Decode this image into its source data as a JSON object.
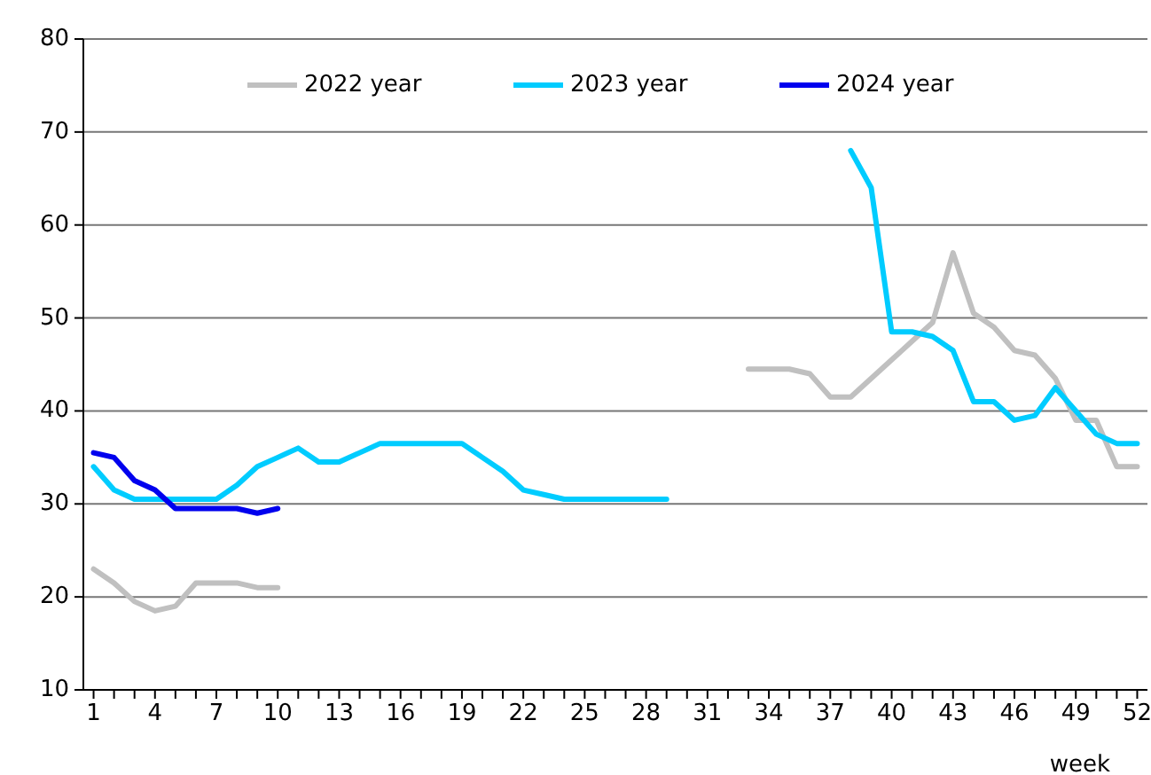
{
  "chart_data": {
    "type": "line",
    "xlabel": "week",
    "x": [
      1,
      2,
      3,
      4,
      5,
      6,
      7,
      8,
      9,
      10,
      11,
      12,
      13,
      14,
      15,
      16,
      17,
      18,
      19,
      20,
      21,
      22,
      23,
      24,
      25,
      26,
      27,
      28,
      29,
      30,
      31,
      32,
      33,
      34,
      35,
      36,
      37,
      38,
      39,
      40,
      41,
      42,
      43,
      44,
      45,
      46,
      47,
      48,
      49,
      50,
      51,
      52
    ],
    "xlim": [
      0.5,
      52.5
    ],
    "xticks": [
      1,
      {
        "value": 2,
        "label": null
      },
      {
        "value": 3,
        "label": null
      },
      4,
      {
        "value": 5,
        "label": null
      },
      {
        "value": 6,
        "label": null
      },
      7,
      {
        "value": 8,
        "label": null
      },
      {
        "value": 9,
        "label": null
      },
      10,
      {
        "value": 11,
        "label": null
      },
      {
        "value": 12,
        "label": null
      },
      13,
      {
        "value": 14,
        "label": null
      },
      {
        "value": 15,
        "label": null
      },
      16,
      {
        "value": 17,
        "label": null
      },
      {
        "value": 18,
        "label": null
      },
      19,
      {
        "value": 20,
        "label": null
      },
      {
        "value": 21,
        "label": null
      },
      22,
      {
        "value": 23,
        "label": null
      },
      {
        "value": 24,
        "label": null
      },
      25,
      {
        "value": 26,
        "label": null
      },
      {
        "value": 27,
        "label": null
      },
      28,
      {
        "value": 29,
        "label": null
      },
      {
        "value": 30,
        "label": null
      },
      31,
      {
        "value": 32,
        "label": null
      },
      {
        "value": 33,
        "label": null
      },
      34,
      {
        "value": 35,
        "label": null
      },
      {
        "value": 36,
        "label": null
      },
      37,
      {
        "value": 38,
        "label": null
      },
      {
        "value": 39,
        "label": null
      },
      40,
      {
        "value": 41,
        "label": null
      },
      {
        "value": 42,
        "label": null
      },
      43,
      {
        "value": 44,
        "label": null
      },
      {
        "value": 45,
        "label": null
      },
      46,
      {
        "value": 47,
        "label": null
      },
      {
        "value": 48,
        "label": null
      },
      49,
      {
        "value": 50,
        "label": null
      },
      {
        "value": 51,
        "label": null
      },
      52
    ],
    "ylim": [
      10,
      80
    ],
    "yticks": [
      10,
      20,
      30,
      40,
      50,
      60,
      70,
      80
    ],
    "grid": "y",
    "legend": "top",
    "marker": "none",
    "line_style": "solid",
    "series": [
      {
        "name": "2022 year",
        "color": "#c0c0c0",
        "values": [
          23,
          21.5,
          19.5,
          18.5,
          19,
          21.5,
          21.5,
          21.5,
          21,
          21,
          null,
          null,
          null,
          null,
          null,
          null,
          null,
          null,
          null,
          null,
          null,
          null,
          null,
          null,
          null,
          null,
          null,
          null,
          null,
          null,
          null,
          null,
          44.5,
          44.5,
          44.5,
          44,
          41.5,
          41.5,
          43.5,
          45.5,
          47.5,
          49.5,
          57,
          50.5,
          49,
          46.5,
          46,
          43.5,
          39,
          39,
          34,
          34
        ]
      },
      {
        "name": "2023 year",
        "color": "#00ccff",
        "values": [
          34,
          31.5,
          30.5,
          30.5,
          30.5,
          30.5,
          30.5,
          32,
          34,
          35,
          36,
          34.5,
          34.5,
          35.5,
          36.5,
          36.5,
          36.5,
          36.5,
          36.5,
          35,
          33.5,
          31.5,
          31,
          30.5,
          30.5,
          30.5,
          30.5,
          30.5,
          30.5,
          null,
          null,
          null,
          null,
          null,
          null,
          null,
          null,
          68,
          64,
          48.5,
          48.5,
          48,
          46.5,
          41,
          41,
          39,
          39.5,
          42.5,
          40,
          37.5,
          36.5,
          36.5
        ]
      },
      {
        "name": "2024 year",
        "color": "#0000ee",
        "values": [
          35.5,
          35,
          32.5,
          31.5,
          29.5,
          29.5,
          29.5,
          29.5,
          29,
          29.5,
          null,
          null,
          null,
          null,
          null,
          null,
          null,
          null,
          null,
          null,
          null,
          null,
          null,
          null,
          null,
          null,
          null,
          null,
          null,
          null,
          null,
          null,
          null,
          null,
          null,
          null,
          null,
          null,
          null,
          null,
          null,
          null,
          null,
          null,
          null,
          null,
          null,
          null,
          null,
          null,
          null,
          null
        ]
      }
    ]
  }
}
